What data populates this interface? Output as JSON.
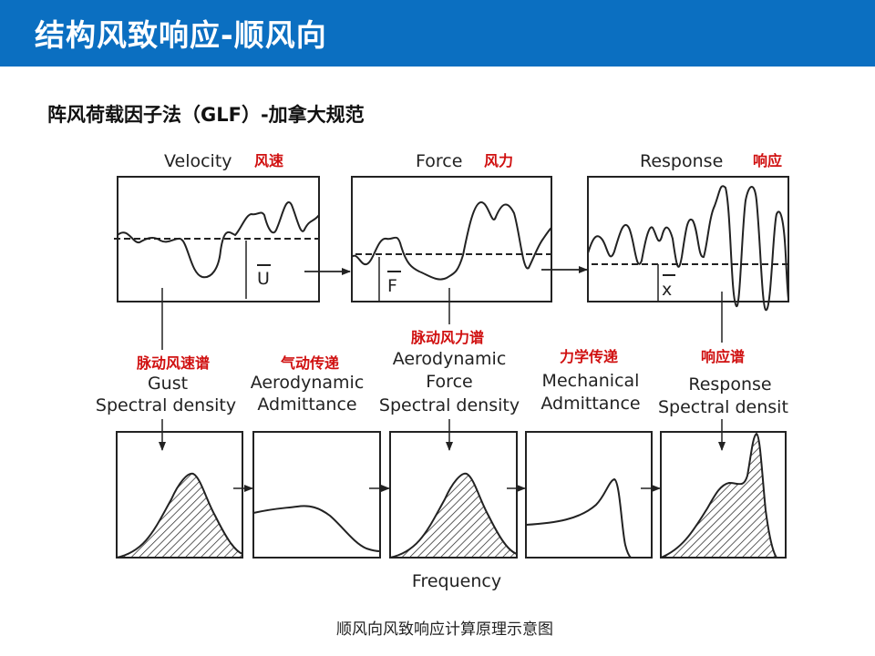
{
  "header": {
    "title": "结构风致响应-顺风向"
  },
  "subtitle": "阵风荷载因子法（GLF）-加拿大规范",
  "diagram": {
    "time_panels": [
      {
        "label_en": "Velocity",
        "label_cn": "风速",
        "mean_symbol": "U"
      },
      {
        "label_en": "Force",
        "label_cn": "风力",
        "mean_symbol": "F"
      },
      {
        "label_en": "Response",
        "label_cn": "响应",
        "mean_symbol": "x"
      }
    ],
    "spectra": [
      {
        "label_cn": "脉动风速谱",
        "label_en_1": "Gust",
        "label_en_2": "Spectral density"
      },
      {
        "label_cn": "气动传递",
        "label_en_1": "Aerodynamic",
        "label_en_2": "Admittance"
      },
      {
        "label_cn": "脉动风力谱",
        "label_en_1": "Aerodynamic",
        "label_en_2": "Force",
        "label_en_3": "Spectral density"
      },
      {
        "label_cn": "力学传递",
        "label_en_1": "Mechanical",
        "label_en_2": "Admittance"
      },
      {
        "label_cn": "响应谱",
        "label_en_1": "Response",
        "label_en_2": "Spectral densit"
      }
    ],
    "x_axis_label": "Frequency"
  },
  "caption": "顺风向风致响应计算原理示意图",
  "colors": {
    "title_bar": "#0b6fc1",
    "chinese_labels": "#d01010"
  }
}
